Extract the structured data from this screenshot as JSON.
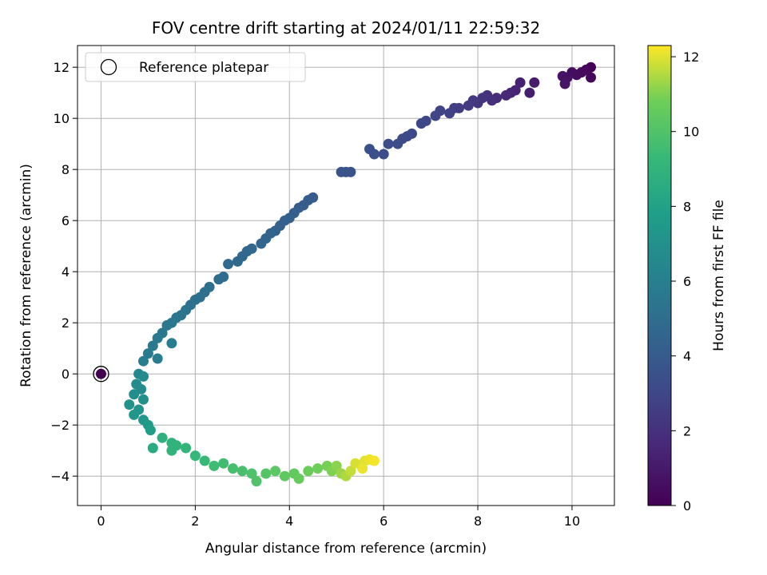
{
  "chart_data": {
    "type": "scatter",
    "title": "FOV centre drift starting at 2024/01/11 22:59:32",
    "xlabel": "Angular distance from reference (arcmin)",
    "ylabel": "Rotation from reference (arcmin)",
    "xlim": [
      -0.5,
      10.9
    ],
    "ylim": [
      -5.15,
      12.85
    ],
    "xticks": [
      0,
      2,
      4,
      6,
      8,
      10
    ],
    "yticks": [
      -4,
      -2,
      0,
      2,
      4,
      6,
      8,
      10,
      12
    ],
    "grid": true,
    "legend": {
      "placement": "top-left",
      "entries": [
        "Reference platepar"
      ]
    },
    "reference_point": {
      "x": 0,
      "y": 0,
      "hours": 0
    },
    "colorbar": {
      "label": "Hours from first FF file",
      "min": 0,
      "max": 12.3,
      "ticks": [
        0,
        2,
        4,
        6,
        8,
        10,
        12
      ],
      "colormap": "viridis"
    },
    "series": [
      {
        "name": "",
        "points": [
          [
            10.4,
            12.0,
            0.1
          ],
          [
            10.3,
            11.9,
            0.2
          ],
          [
            10.2,
            11.8,
            0.3
          ],
          [
            10.4,
            11.6,
            0.3
          ],
          [
            10.1,
            11.7,
            0.4
          ],
          [
            10.0,
            11.8,
            0.5
          ],
          [
            9.9,
            11.6,
            0.6
          ],
          [
            9.8,
            11.65,
            0.7
          ],
          [
            9.85,
            11.35,
            0.8
          ],
          [
            9.2,
            11.4,
            1.1
          ],
          [
            9.1,
            11.0,
            1.2
          ],
          [
            8.9,
            11.4,
            1.3
          ],
          [
            8.8,
            11.1,
            1.4
          ],
          [
            8.7,
            11.0,
            1.5
          ],
          [
            8.6,
            10.9,
            1.6
          ],
          [
            8.4,
            10.8,
            1.8
          ],
          [
            8.3,
            10.7,
            1.9
          ],
          [
            8.2,
            10.9,
            2.0
          ],
          [
            8.1,
            10.8,
            2.1
          ],
          [
            8.0,
            10.6,
            2.2
          ],
          [
            7.9,
            10.7,
            2.3
          ],
          [
            7.8,
            10.5,
            2.4
          ],
          [
            7.6,
            10.4,
            2.5
          ],
          [
            7.5,
            10.4,
            2.6
          ],
          [
            7.4,
            10.2,
            2.7
          ],
          [
            7.2,
            10.3,
            2.8
          ],
          [
            7.1,
            10.1,
            2.9
          ],
          [
            6.9,
            9.9,
            3.0
          ],
          [
            6.8,
            9.8,
            3.05
          ],
          [
            6.6,
            9.4,
            3.1
          ],
          [
            6.5,
            9.3,
            3.15
          ],
          [
            6.4,
            9.2,
            3.2
          ],
          [
            6.3,
            9.0,
            3.25
          ],
          [
            6.1,
            9.0,
            3.3
          ],
          [
            6.0,
            8.6,
            3.35
          ],
          [
            5.8,
            8.6,
            3.4
          ],
          [
            5.7,
            8.8,
            3.45
          ],
          [
            5.3,
            7.9,
            3.55
          ],
          [
            5.2,
            7.9,
            3.6
          ],
          [
            5.1,
            7.9,
            3.65
          ],
          [
            4.5,
            6.9,
            4.0
          ],
          [
            4.4,
            6.8,
            4.05
          ],
          [
            4.3,
            6.6,
            4.1
          ],
          [
            4.2,
            6.5,
            4.15
          ],
          [
            4.1,
            6.3,
            4.2
          ],
          [
            4.0,
            6.1,
            4.25
          ],
          [
            3.9,
            6.0,
            4.3
          ],
          [
            3.8,
            5.8,
            4.35
          ],
          [
            3.7,
            5.6,
            4.4
          ],
          [
            3.6,
            5.5,
            4.45
          ],
          [
            3.5,
            5.3,
            4.5
          ],
          [
            3.4,
            5.1,
            4.55
          ],
          [
            3.2,
            4.9,
            4.6
          ],
          [
            3.1,
            4.8,
            4.65
          ],
          [
            3.0,
            4.6,
            4.7
          ],
          [
            2.9,
            4.4,
            4.75
          ],
          [
            2.7,
            4.3,
            4.8
          ],
          [
            2.6,
            3.8,
            4.9
          ],
          [
            2.5,
            3.7,
            4.95
          ],
          [
            2.3,
            3.4,
            5.0
          ],
          [
            2.2,
            3.2,
            5.05
          ],
          [
            2.1,
            3.0,
            5.1
          ],
          [
            2.0,
            2.9,
            5.15
          ],
          [
            1.9,
            2.7,
            5.2
          ],
          [
            1.8,
            2.5,
            5.3
          ],
          [
            1.7,
            2.3,
            5.35
          ],
          [
            1.6,
            2.2,
            5.4
          ],
          [
            1.5,
            2.0,
            5.5
          ],
          [
            1.4,
            1.9,
            5.55
          ],
          [
            1.3,
            1.6,
            5.6
          ],
          [
            1.2,
            1.4,
            5.65
          ],
          [
            1.1,
            1.1,
            5.7
          ],
          [
            1.0,
            0.8,
            5.8
          ],
          [
            0.9,
            0.5,
            5.85
          ],
          [
            1.2,
            0.6,
            5.9
          ],
          [
            1.5,
            1.2,
            5.95
          ],
          [
            0.8,
            0.0,
            6.5
          ],
          [
            0.9,
            -0.1,
            6.6
          ],
          [
            0.75,
            -0.4,
            6.7
          ],
          [
            0.85,
            -0.6,
            6.8
          ],
          [
            0.7,
            -0.8,
            6.9
          ],
          [
            0.9,
            -1.0,
            7.0
          ],
          [
            0.6,
            -1.2,
            7.1
          ],
          [
            0.8,
            -1.4,
            7.2
          ],
          [
            0.7,
            -1.6,
            7.3
          ],
          [
            0.9,
            -1.8,
            7.4
          ],
          [
            1.0,
            -2.0,
            7.6
          ],
          [
            1.05,
            -2.2,
            7.8
          ],
          [
            1.1,
            -2.9,
            8.5
          ],
          [
            1.3,
            -2.5,
            8.8
          ],
          [
            1.5,
            -2.7,
            8.9
          ],
          [
            1.6,
            -2.8,
            9.0
          ],
          [
            1.5,
            -3.0,
            9.0
          ],
          [
            1.8,
            -2.9,
            9.1
          ],
          [
            2.0,
            -3.2,
            9.2
          ],
          [
            2.2,
            -3.4,
            9.3
          ],
          [
            2.4,
            -3.6,
            9.5
          ],
          [
            2.6,
            -3.5,
            9.6
          ],
          [
            2.8,
            -3.7,
            9.7
          ],
          [
            3.0,
            -3.8,
            9.8
          ],
          [
            3.2,
            -3.9,
            9.9
          ],
          [
            3.3,
            -4.2,
            10.0
          ],
          [
            3.5,
            -3.9,
            10.1
          ],
          [
            3.7,
            -3.8,
            10.3
          ],
          [
            3.9,
            -4.0,
            10.4
          ],
          [
            4.1,
            -3.9,
            10.5
          ],
          [
            4.2,
            -4.1,
            10.6
          ],
          [
            4.4,
            -3.8,
            10.7
          ],
          [
            4.6,
            -3.7,
            10.8
          ],
          [
            4.8,
            -3.6,
            10.9
          ],
          [
            4.9,
            -3.8,
            11.0
          ],
          [
            5.0,
            -3.6,
            11.1
          ],
          [
            5.1,
            -3.9,
            11.3
          ],
          [
            5.2,
            -4.0,
            11.5
          ],
          [
            5.3,
            -3.8,
            11.7
          ],
          [
            5.4,
            -3.5,
            11.9
          ],
          [
            5.6,
            -3.4,
            12.0
          ],
          [
            5.7,
            -3.35,
            12.1
          ],
          [
            5.8,
            -3.4,
            12.2
          ],
          [
            5.55,
            -3.7,
            12.1
          ]
        ]
      }
    ]
  }
}
